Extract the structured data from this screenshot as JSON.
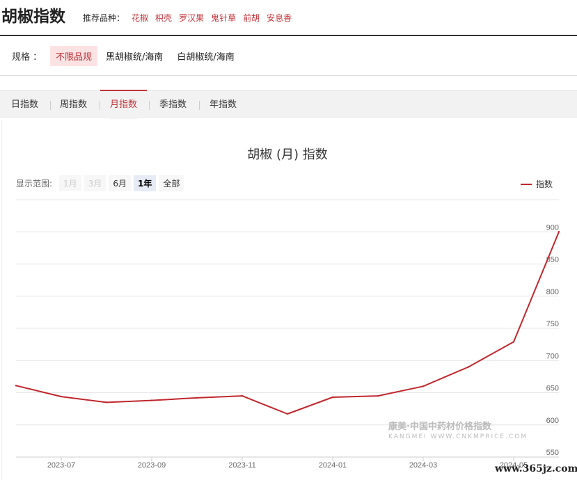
{
  "header": {
    "title": "胡椒指数",
    "recommend_label": "推荐品种：",
    "recommend_items": [
      "花椒",
      "枳壳",
      "罗汉果",
      "鬼针草",
      "前胡",
      "安息香"
    ]
  },
  "spec": {
    "label": "规格 ：",
    "options": [
      "不限品规",
      "黑胡椒统/海南",
      "白胡椒统/海南"
    ],
    "active_index": 0
  },
  "tabs": {
    "items": [
      "日指数",
      "周指数",
      "月指数",
      "季指数",
      "年指数"
    ],
    "active_index": 2
  },
  "range": {
    "label": "显示范围:",
    "buttons": [
      "1月",
      "3月",
      "6月",
      "1年",
      "全部"
    ],
    "disabled": [
      0,
      1
    ],
    "selected_index": 3
  },
  "watermark": {
    "main": "康美·中国中药材价格指数",
    "sub": "KANGMEI WWW.CNKMPRICE.COM"
  },
  "site": "www.365jz.com",
  "colors": {
    "accent": "#c0333a",
    "line": "#c0272d"
  },
  "chart_data": {
    "type": "line",
    "title": "胡椒 (月) 指数",
    "legend": "指数",
    "legend_position": "top-right",
    "grid": true,
    "x": [
      "2023-06",
      "2023-07",
      "2023-08",
      "2023-09",
      "2023-10",
      "2023-11",
      "2023-12",
      "2024-01",
      "2024-02",
      "2024-03",
      "2024-04",
      "2024-05",
      "2024-06"
    ],
    "x_tick_labels": [
      "2023-07",
      "2023-09",
      "2023-11",
      "2024-01",
      "2024-03",
      "2024-05"
    ],
    "series": [
      {
        "name": "指数",
        "values": [
          661,
          644,
          635,
          638,
          642,
          645,
          617,
          643,
          645,
          660,
          690,
          729,
          900
        ]
      }
    ],
    "y_ticks": [
      550,
      600,
      650,
      700,
      750,
      800,
      850,
      900
    ],
    "ylim": [
      550,
      950
    ]
  }
}
